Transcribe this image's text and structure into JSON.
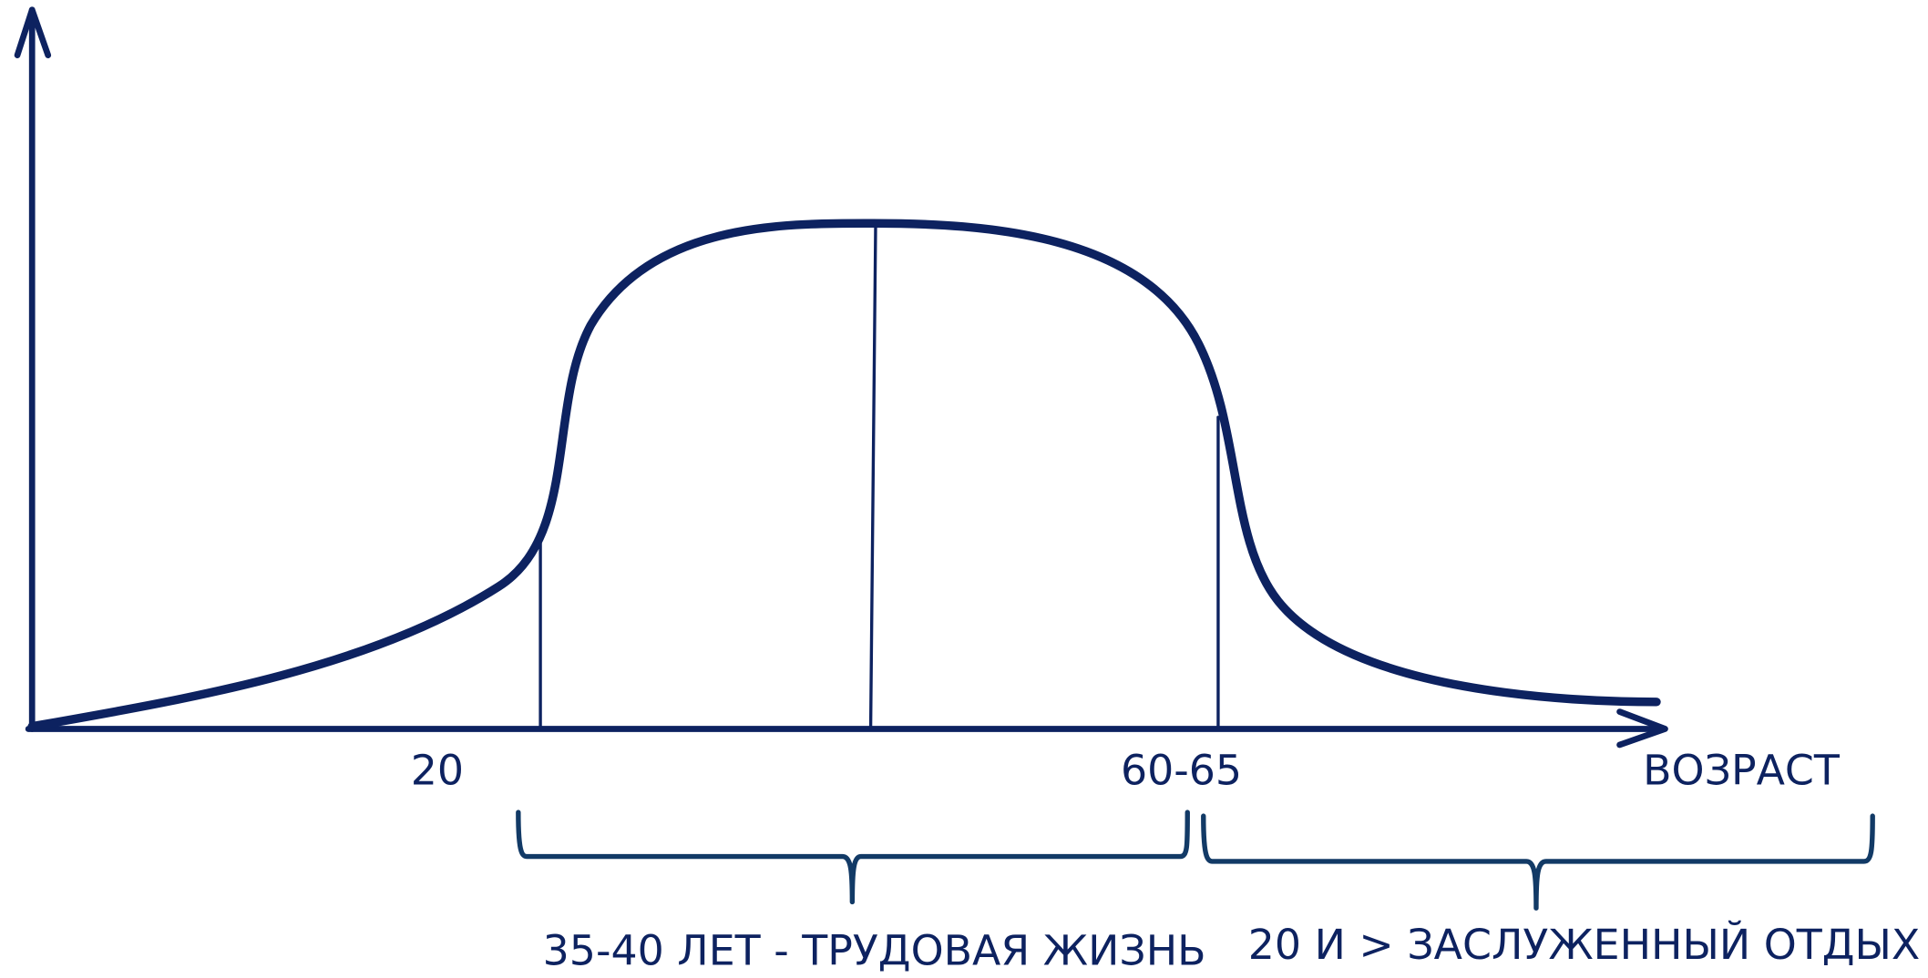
{
  "axis": {
    "x_label": "ВОЗРАСТ",
    "ticks": [
      "20",
      "60-65"
    ]
  },
  "periods": [
    {
      "label": "35-40 ЛЕТ - ТРУДОВАЯ ЖИЗНЬ"
    },
    {
      "label": "20 И > ЗАСЛУЖЕННЫЙ ОТДЫХ"
    }
  ]
}
